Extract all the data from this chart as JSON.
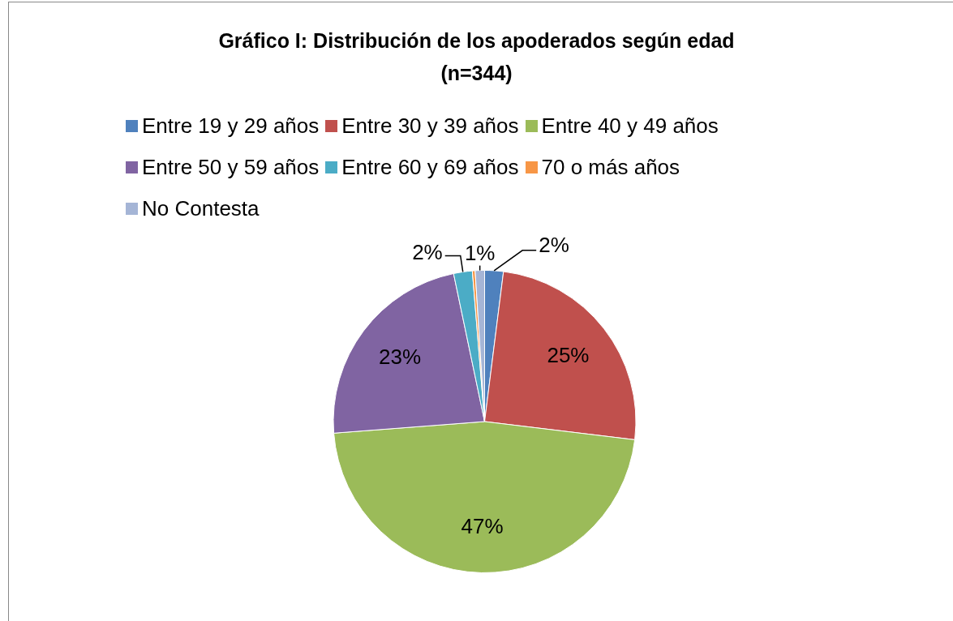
{
  "chart_data": {
    "type": "pie",
    "title": "Gráfico I: Distribución de los apoderados según edad\n(n=344)",
    "categories": [
      "Entre 19 y 29 años",
      "Entre 30 y 39 años",
      "Entre 40 y 49 años",
      "Entre 50 y 59 años",
      "Entre 60 y 69 años",
      "70 o más años",
      "No Contesta"
    ],
    "values": [
      2,
      25,
      47,
      23,
      2,
      0.3,
      1
    ],
    "value_labels": [
      "2%",
      "25%",
      "47%",
      "23%",
      "2%",
      null,
      "1%"
    ],
    "colors": [
      "#4f81bd",
      "#c0504d",
      "#9bbb59",
      "#8064a2",
      "#4bacc6",
      "#f79646",
      "#a5b5d6"
    ],
    "legend": "top"
  }
}
